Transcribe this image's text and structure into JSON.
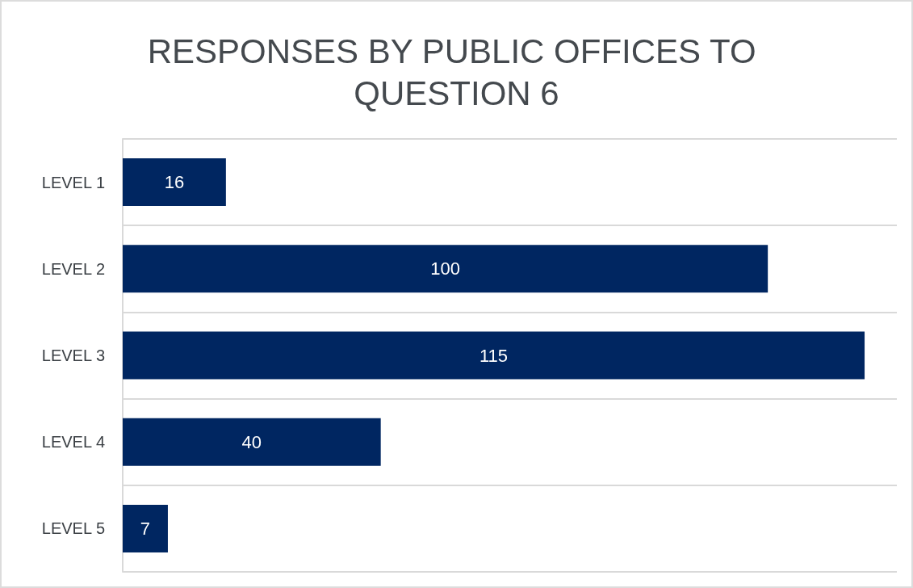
{
  "chart_data": {
    "type": "bar",
    "orientation": "horizontal",
    "title": "RESPONSES BY PUBLIC OFFICES TO QUESTION 6",
    "categories": [
      "LEVEL 1",
      "LEVEL 2",
      "LEVEL 3",
      "LEVEL 4",
      "LEVEL 5"
    ],
    "values": [
      16,
      100,
      115,
      40,
      7
    ],
    "color": "#002661",
    "data_labels": true,
    "grid": "y"
  }
}
